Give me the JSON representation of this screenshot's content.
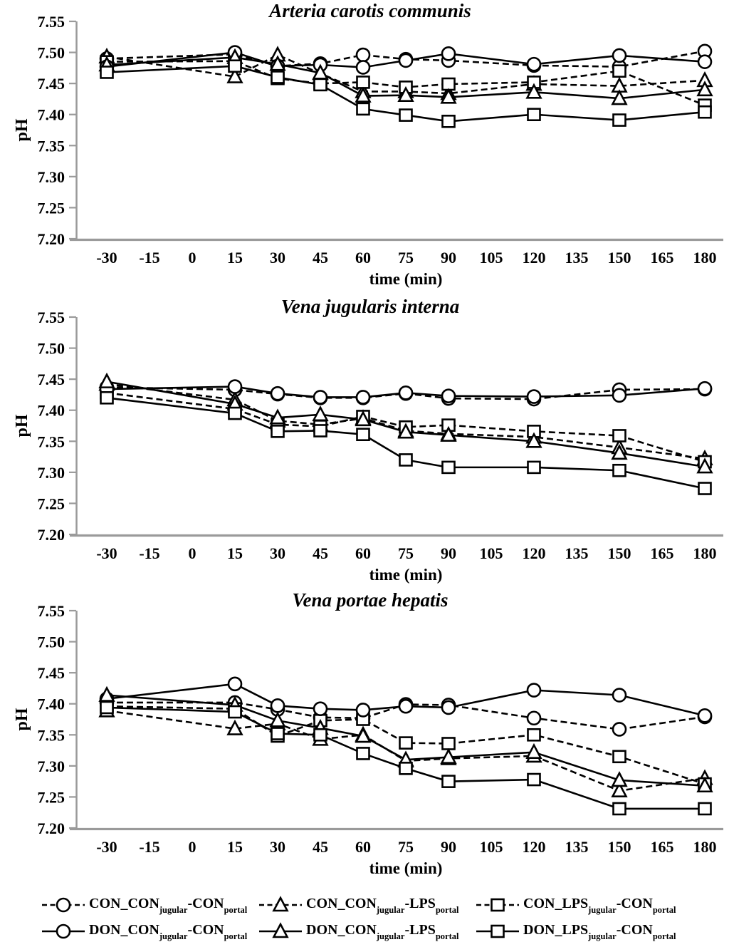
{
  "figure": {
    "background": "#ffffff",
    "colors": {
      "line": "#000000",
      "axis": "#9a9a9a",
      "marker_fill": "#ffffff",
      "text": "#000000"
    }
  },
  "chart_data": [
    {
      "type": "line",
      "title": "Arteria carotis communis",
      "xlabel": "time (min)",
      "ylabel": "pH",
      "ylim": [
        7.2,
        7.55
      ],
      "ytick_step": 0.05,
      "y_ticks": [
        "7.55",
        "7.50",
        "7.45",
        "7.40",
        "7.35",
        "7.30",
        "7.25",
        "7.20"
      ],
      "x_ticks": [
        -30,
        -15,
        0,
        15,
        30,
        45,
        60,
        75,
        90,
        105,
        120,
        135,
        150,
        165,
        180
      ],
      "grid": false,
      "times": [
        -30,
        15,
        30,
        45,
        60,
        75,
        90,
        120,
        150,
        180
      ],
      "series": [
        {
          "name": "CON_CON_jugular-CON_portal",
          "line": "dashed",
          "marker": "circle",
          "values": [
            7.49,
            7.497,
            7.478,
            7.482,
            7.496,
            7.489,
            7.487,
            7.479,
            7.477,
            7.502
          ]
        },
        {
          "name": "CON_CON_jugular-LPS_portal",
          "line": "dashed",
          "marker": "triangle",
          "values": [
            7.493,
            7.461,
            7.496,
            7.466,
            7.437,
            7.437,
            7.434,
            7.449,
            7.446,
            7.455
          ]
        },
        {
          "name": "CON_LPS_jugular-CON_portal",
          "line": "dashed",
          "marker": "square",
          "values": [
            7.485,
            7.486,
            7.458,
            7.45,
            7.452,
            7.444,
            7.449,
            7.452,
            7.47,
            7.415
          ]
        },
        {
          "name": "DON_CON_jugular-CON_portal",
          "line": "solid",
          "marker": "circle",
          "values": [
            7.477,
            7.5,
            7.478,
            7.48,
            7.476,
            7.487,
            7.498,
            7.481,
            7.495,
            7.485
          ]
        },
        {
          "name": "DON_CON_jugular-LPS_portal",
          "line": "solid",
          "marker": "triangle",
          "values": [
            7.48,
            7.492,
            7.481,
            7.467,
            7.43,
            7.431,
            7.428,
            7.436,
            7.426,
            7.44
          ]
        },
        {
          "name": "DON_LPS_jugular-CON_portal",
          "line": "solid",
          "marker": "square",
          "values": [
            7.468,
            7.478,
            7.46,
            7.448,
            7.409,
            7.399,
            7.389,
            7.4,
            7.391,
            7.404
          ]
        }
      ]
    },
    {
      "type": "line",
      "title": "Vena jugularis interna",
      "xlabel": "time (min)",
      "ylabel": "pH",
      "ylim": [
        7.2,
        7.55
      ],
      "ytick_step": 0.05,
      "y_ticks": [
        "7.55",
        "7.50",
        "7.45",
        "7.40",
        "7.35",
        "7.30",
        "7.25",
        "7.20"
      ],
      "x_ticks": [
        -30,
        -15,
        0,
        15,
        30,
        45,
        60,
        75,
        90,
        105,
        120,
        135,
        150,
        165,
        180
      ],
      "grid": false,
      "times": [
        -30,
        15,
        30,
        45,
        60,
        75,
        90,
        120,
        150,
        180
      ],
      "series": [
        {
          "name": "CON_CON_jugular-CON_portal",
          "line": "dashed",
          "marker": "circle",
          "values": [
            7.437,
            7.433,
            7.426,
            7.42,
            7.42,
            7.427,
            7.419,
            7.418,
            7.433,
            7.434
          ]
        },
        {
          "name": "CON_CON_jugular-LPS_portal",
          "line": "dashed",
          "marker": "triangle",
          "values": [
            7.442,
            7.417,
            7.383,
            7.377,
            7.387,
            7.367,
            7.362,
            7.357,
            7.34,
            7.322
          ]
        },
        {
          "name": "CON_LPS_jugular-CON_portal",
          "line": "dashed",
          "marker": "square",
          "values": [
            7.428,
            7.402,
            7.377,
            7.374,
            7.39,
            7.373,
            7.376,
            7.366,
            7.359,
            7.317
          ]
        },
        {
          "name": "DON_CON_jugular-CON_portal",
          "line": "solid",
          "marker": "circle",
          "values": [
            7.434,
            7.438,
            7.427,
            7.421,
            7.421,
            7.428,
            7.423,
            7.422,
            7.424,
            7.435
          ]
        },
        {
          "name": "DON_CON_jugular-LPS_portal",
          "line": "solid",
          "marker": "triangle",
          "values": [
            7.446,
            7.41,
            7.388,
            7.393,
            7.385,
            7.365,
            7.36,
            7.35,
            7.331,
            7.309
          ]
        },
        {
          "name": "DON_LPS_jugular-CON_portal",
          "line": "solid",
          "marker": "square",
          "values": [
            7.42,
            7.395,
            7.366,
            7.367,
            7.361,
            7.32,
            7.308,
            7.308,
            7.303,
            7.274
          ]
        }
      ]
    },
    {
      "type": "line",
      "title": "Vena portae hepatis",
      "xlabel": "time (min)",
      "ylabel": "pH",
      "ylim": [
        7.2,
        7.55
      ],
      "ytick_step": 0.05,
      "y_ticks": [
        "7.55",
        "7.50",
        "7.45",
        "7.40",
        "7.35",
        "7.30",
        "7.25",
        "7.20"
      ],
      "x_ticks": [
        -30,
        -15,
        0,
        15,
        30,
        45,
        60,
        75,
        90,
        105,
        120,
        135,
        150,
        165,
        180
      ],
      "grid": false,
      "times": [
        -30,
        15,
        30,
        45,
        60,
        75,
        90,
        120,
        150,
        180
      ],
      "series": [
        {
          "name": "CON_CON_jugular-CON_portal",
          "line": "dashed",
          "marker": "circle",
          "values": [
            7.402,
            7.402,
            7.391,
            7.378,
            7.377,
            7.399,
            7.398,
            7.377,
            7.359,
            7.379
          ]
        },
        {
          "name": "CON_CON_jugular-LPS_portal",
          "line": "dashed",
          "marker": "triangle",
          "values": [
            7.389,
            7.36,
            7.368,
            7.343,
            7.35,
            7.308,
            7.312,
            7.316,
            7.26,
            7.28
          ]
        },
        {
          "name": "CON_LPS_jugular-CON_portal",
          "line": "dashed",
          "marker": "square",
          "values": [
            7.396,
            7.392,
            7.348,
            7.373,
            7.375,
            7.337,
            7.336,
            7.35,
            7.315,
            7.271
          ]
        },
        {
          "name": "DON_CON_jugular-CON_portal",
          "line": "solid",
          "marker": "circle",
          "values": [
            7.408,
            7.432,
            7.397,
            7.392,
            7.39,
            7.396,
            7.394,
            7.422,
            7.414,
            7.381
          ]
        },
        {
          "name": "DON_CON_jugular-LPS_portal",
          "line": "solid",
          "marker": "triangle",
          "values": [
            7.414,
            7.398,
            7.373,
            7.361,
            7.348,
            7.31,
            7.314,
            7.322,
            7.277,
            7.268
          ]
        },
        {
          "name": "DON_LPS_jugular-CON_portal",
          "line": "solid",
          "marker": "square",
          "values": [
            7.394,
            7.387,
            7.352,
            7.35,
            7.32,
            7.296,
            7.275,
            7.278,
            7.231,
            7.231
          ]
        }
      ]
    }
  ],
  "legend": {
    "position": "bottom",
    "rows": [
      [
        {
          "name": "CON_CON_jugular-CON_portal",
          "line": "dashed",
          "marker": "circle",
          "parts": {
            "p1": "CON_CON",
            "s1": "jugular",
            "p2": "-CON",
            "s2": "portal"
          }
        },
        {
          "name": "CON_CON_jugular-LPS_portal",
          "line": "dashed",
          "marker": "triangle",
          "parts": {
            "p1": "CON_CON",
            "s1": "jugular",
            "p2": "-LPS",
            "s2": "portal"
          }
        },
        {
          "name": "CON_LPS_jugular-CON_portal",
          "line": "dashed",
          "marker": "square",
          "parts": {
            "p1": "CON_LPS",
            "s1": "jugular",
            "p2": "-CON",
            "s2": "portal"
          }
        }
      ],
      [
        {
          "name": "DON_CON_jugular-CON_portal",
          "line": "solid",
          "marker": "circle",
          "parts": {
            "p1": "DON_CON",
            "s1": "jugular",
            "p2": "-CON",
            "s2": "portal"
          }
        },
        {
          "name": "DON_CON_jugular-LPS_portal",
          "line": "solid",
          "marker": "triangle",
          "parts": {
            "p1": "DON_CON",
            "s1": "jugular",
            "p2": "-LPS",
            "s2": "portal"
          }
        },
        {
          "name": "DON_LPS_jugular-CON_portal",
          "line": "solid",
          "marker": "square",
          "parts": {
            "p1": "DON_LPS",
            "s1": "jugular",
            "p2": "-CON",
            "s2": "portal"
          }
        }
      ]
    ]
  }
}
